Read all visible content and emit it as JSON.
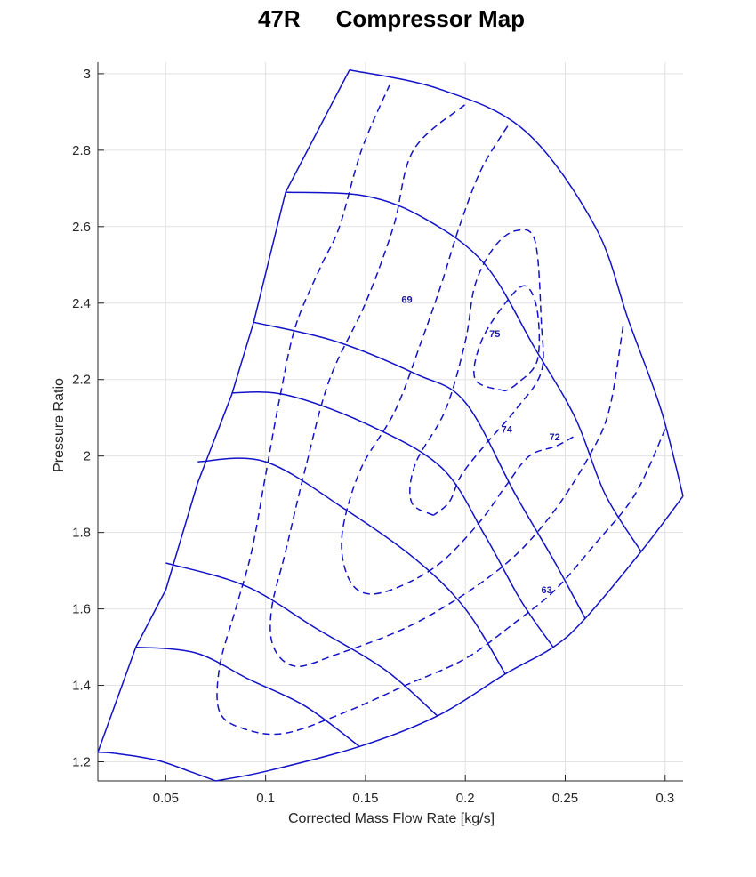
{
  "chart_data": {
    "type": "line",
    "title_left": "47R",
    "title_right": "Compressor Map",
    "xlabel": "Corrected Mass Flow Rate [kg/s]",
    "ylabel": "Pressure Ratio",
    "xlim": [
      0.016,
      0.309
    ],
    "ylim": [
      1.15,
      3.03
    ],
    "grid": true,
    "line_color": "#1212c8",
    "x_ticks": [
      0.05,
      0.1,
      0.15,
      0.2,
      0.25,
      0.3
    ],
    "x_tick_labels": [
      "0.05",
      "0.1",
      "0.15",
      "0.2",
      "0.25",
      "0.3"
    ],
    "y_ticks": [
      1.2,
      1.4,
      1.6,
      1.8,
      2,
      2.2,
      2.4,
      2.6,
      2.8,
      3
    ],
    "y_tick_labels": [
      "1.2",
      "1.4",
      "1.6",
      "1.8",
      "2",
      "2.2",
      "2.4",
      "2.6",
      "2.8",
      "3"
    ],
    "boundary": {
      "surge": [
        [
          0.016,
          1.225
        ],
        [
          0.035,
          1.5
        ],
        [
          0.05,
          1.65
        ],
        [
          0.066,
          1.93
        ],
        [
          0.083,
          2.16
        ],
        [
          0.094,
          2.35
        ],
        [
          0.11,
          2.69
        ],
        [
          0.142,
          3.01
        ]
      ],
      "top": [
        [
          0.142,
          3.01
        ],
        [
          0.187,
          2.96
        ],
        [
          0.23,
          2.85
        ],
        [
          0.265,
          2.6
        ],
        [
          0.282,
          2.35
        ],
        [
          0.298,
          2.12
        ],
        [
          0.309,
          1.895
        ]
      ],
      "choke": [
        [
          0.309,
          1.895
        ],
        [
          0.288,
          1.75
        ],
        [
          0.26,
          1.575
        ],
        [
          0.244,
          1.5
        ],
        [
          0.22,
          1.43
        ],
        [
          0.186,
          1.32
        ],
        [
          0.147,
          1.24
        ],
        [
          0.1,
          1.175
        ],
        [
          0.075,
          1.15
        ]
      ],
      "bottom": [
        [
          0.075,
          1.15
        ],
        [
          0.062,
          1.175
        ],
        [
          0.045,
          1.205
        ],
        [
          0.025,
          1.222
        ],
        [
          0.016,
          1.225
        ]
      ]
    },
    "speed_lines": [
      [
        [
          0.035,
          1.5
        ],
        [
          0.065,
          1.485
        ],
        [
          0.092,
          1.415
        ],
        [
          0.12,
          1.345
        ],
        [
          0.147,
          1.24
        ]
      ],
      [
        [
          0.05,
          1.72
        ],
        [
          0.09,
          1.66
        ],
        [
          0.125,
          1.55
        ],
        [
          0.16,
          1.44
        ],
        [
          0.186,
          1.32
        ]
      ],
      [
        [
          0.066,
          1.985
        ],
        [
          0.1,
          1.985
        ],
        [
          0.14,
          1.86
        ],
        [
          0.175,
          1.73
        ],
        [
          0.2,
          1.6
        ],
        [
          0.22,
          1.43
        ]
      ],
      [
        [
          0.083,
          2.165
        ],
        [
          0.11,
          2.16
        ],
        [
          0.15,
          2.085
        ],
        [
          0.188,
          1.97
        ],
        [
          0.21,
          1.79
        ],
        [
          0.228,
          1.62
        ],
        [
          0.244,
          1.5
        ]
      ],
      [
        [
          0.094,
          2.35
        ],
        [
          0.135,
          2.3
        ],
        [
          0.175,
          2.215
        ],
        [
          0.2,
          2.14
        ],
        [
          0.225,
          1.9
        ],
        [
          0.245,
          1.72
        ],
        [
          0.26,
          1.575
        ]
      ],
      [
        [
          0.11,
          2.69
        ],
        [
          0.15,
          2.68
        ],
        [
          0.18,
          2.62
        ],
        [
          0.21,
          2.5
        ],
        [
          0.235,
          2.28
        ],
        [
          0.255,
          2.1
        ],
        [
          0.27,
          1.9
        ],
        [
          0.288,
          1.75
        ]
      ]
    ],
    "efficiency_islands": [
      {
        "label": "75",
        "label_at": [
          0.212,
          2.32
        ],
        "closed": true,
        "points": [
          [
            0.22,
            2.17
          ],
          [
            0.205,
            2.2
          ],
          [
            0.208,
            2.3
          ],
          [
            0.22,
            2.4
          ],
          [
            0.23,
            2.445
          ],
          [
            0.236,
            2.38
          ],
          [
            0.236,
            2.25
          ],
          [
            0.226,
            2.19
          ],
          [
            0.22,
            2.17
          ]
        ]
      },
      {
        "label": "74",
        "label_at": [
          0.218,
          2.07
        ],
        "closed": true,
        "points": [
          [
            0.184,
            1.845
          ],
          [
            0.173,
            1.88
          ],
          [
            0.175,
            1.98
          ],
          [
            0.19,
            2.12
          ],
          [
            0.2,
            2.3
          ],
          [
            0.205,
            2.45
          ],
          [
            0.215,
            2.55
          ],
          [
            0.226,
            2.59
          ],
          [
            0.235,
            2.56
          ],
          [
            0.238,
            2.35
          ],
          [
            0.238,
            2.22
          ],
          [
            0.225,
            2.12
          ],
          [
            0.21,
            2.03
          ],
          [
            0.198,
            1.95
          ],
          [
            0.192,
            1.88
          ],
          [
            0.184,
            1.845
          ]
        ]
      },
      {
        "label": "72",
        "label_at": [
          0.242,
          2.05
        ],
        "closed": false,
        "points": [
          [
            0.254,
            2.05
          ],
          [
            0.245,
            2.025
          ],
          [
            0.232,
            2.0
          ],
          [
            0.22,
            1.92
          ],
          [
            0.206,
            1.82
          ],
          [
            0.185,
            1.71
          ],
          [
            0.16,
            1.645
          ],
          [
            0.146,
            1.65
          ],
          [
            0.139,
            1.72
          ],
          [
            0.139,
            1.82
          ],
          [
            0.148,
            1.97
          ],
          [
            0.165,
            2.12
          ],
          [
            0.178,
            2.3
          ],
          [
            0.188,
            2.45
          ],
          [
            0.197,
            2.6
          ],
          [
            0.208,
            2.75
          ],
          [
            0.222,
            2.87
          ]
        ]
      },
      {
        "label": "69",
        "label_at": [
          0.168,
          2.41
        ],
        "closed": false,
        "points": [
          [
            0.279,
            2.34
          ],
          [
            0.272,
            2.12
          ],
          [
            0.262,
            2.0
          ],
          [
            0.245,
            1.86
          ],
          [
            0.225,
            1.74
          ],
          [
            0.2,
            1.64
          ],
          [
            0.17,
            1.55
          ],
          [
            0.135,
            1.48
          ],
          [
            0.115,
            1.45
          ],
          [
            0.104,
            1.5
          ],
          [
            0.103,
            1.6
          ],
          [
            0.11,
            1.75
          ],
          [
            0.12,
            1.97
          ],
          [
            0.132,
            2.2
          ],
          [
            0.15,
            2.4
          ],
          [
            0.164,
            2.6
          ],
          [
            0.174,
            2.8
          ],
          [
            0.2,
            2.92
          ]
        ]
      },
      {
        "label": "63",
        "label_at": [
          0.238,
          1.65
        ],
        "closed": false,
        "points": [
          [
            0.3,
            2.07
          ],
          [
            0.285,
            1.9
          ],
          [
            0.265,
            1.77
          ],
          [
            0.245,
            1.65
          ],
          [
            0.225,
            1.565
          ],
          [
            0.2,
            1.47
          ],
          [
            0.17,
            1.4
          ],
          [
            0.14,
            1.33
          ],
          [
            0.11,
            1.275
          ],
          [
            0.09,
            1.285
          ],
          [
            0.077,
            1.33
          ],
          [
            0.077,
            1.45
          ],
          [
            0.085,
            1.6
          ],
          [
            0.093,
            1.75
          ],
          [
            0.1,
            1.95
          ],
          [
            0.107,
            2.15
          ],
          [
            0.115,
            2.34
          ],
          [
            0.128,
            2.5
          ],
          [
            0.137,
            2.6
          ],
          [
            0.148,
            2.8
          ],
          [
            0.162,
            2.97
          ]
        ]
      }
    ]
  }
}
